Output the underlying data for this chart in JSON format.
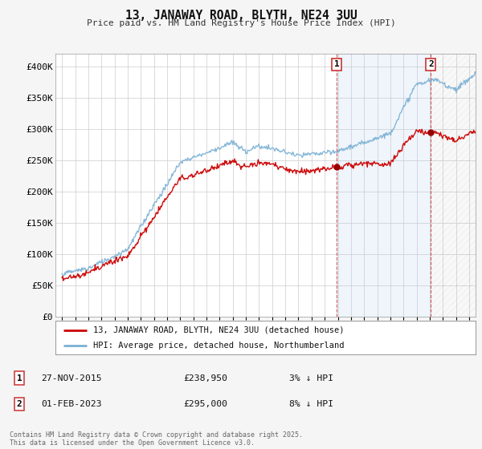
{
  "title": "13, JANAWAY ROAD, BLYTH, NE24 3UU",
  "subtitle": "Price paid vs. HM Land Registry's House Price Index (HPI)",
  "background_color": "#f5f5f5",
  "plot_bg_color": "#ffffff",
  "grid_color": "#cccccc",
  "hpi_color": "#7ab0d4",
  "price_color": "#cc0000",
  "shade_color": "#ddeeff",
  "marker1_date_x": 2015.92,
  "marker2_date_x": 2023.08,
  "legend_line1": "13, JANAWAY ROAD, BLYTH, NE24 3UU (detached house)",
  "legend_line2": "HPI: Average price, detached house, Northumberland",
  "footer": "Contains HM Land Registry data © Crown copyright and database right 2025.\nThis data is licensed under the Open Government Licence v3.0.",
  "ylim": [
    0,
    420000
  ],
  "xlim": [
    1994.5,
    2026.5
  ],
  "yticks": [
    0,
    50000,
    100000,
    150000,
    200000,
    250000,
    300000,
    350000,
    400000
  ],
  "ytick_labels": [
    "£0",
    "£50K",
    "£100K",
    "£150K",
    "£200K",
    "£250K",
    "£300K",
    "£350K",
    "£400K"
  ]
}
